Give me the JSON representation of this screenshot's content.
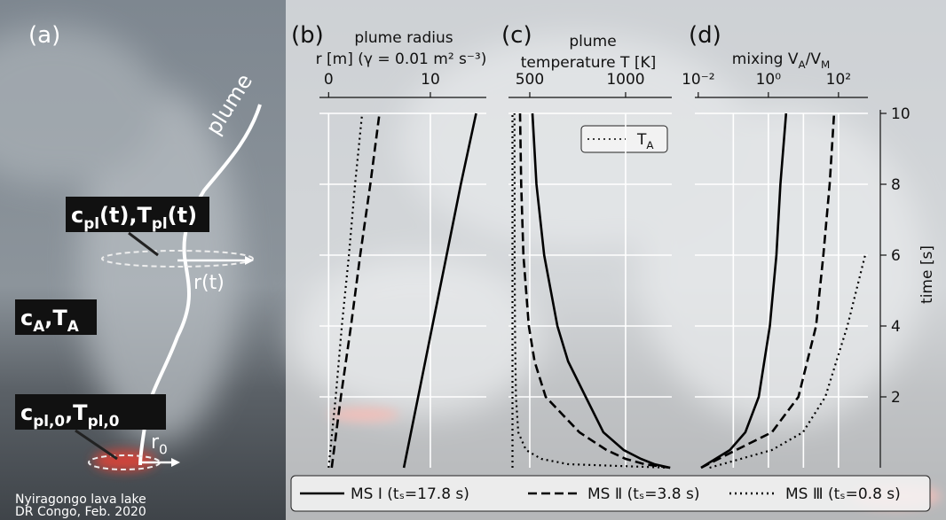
{
  "photo": {
    "panel_label": "(a)",
    "plume_label": "plume",
    "label_plume_state": [
      {
        "text": "c",
        "sub": "pl"
      },
      {
        "text": "(t),T",
        "sub": "pl"
      },
      {
        "text": "(t)"
      }
    ],
    "label_ambient": [
      {
        "text": "c",
        "sub": "A"
      },
      {
        "text": ",T",
        "sub": "A"
      }
    ],
    "label_initial": [
      {
        "text": "c",
        "sub": "pl,0"
      },
      {
        "text": ",T",
        "sub": "pl,0"
      }
    ],
    "label_radius": "r(t)",
    "label_radius0": [
      {
        "text": "r",
        "sub": "0"
      }
    ],
    "caption": [
      "Nyiragongo lava lake",
      "DR Congo, Feb. 2020"
    ]
  },
  "chart_data": [
    {
      "type": "line",
      "orientation": "horizontal",
      "panel_label": "(b)",
      "title": "plume radius",
      "xlabel": "r [m] (γ = 0.01 m² s⁻³)",
      "xlim": [
        -0.9,
        15.5
      ],
      "xticks": [
        0,
        10
      ],
      "ylim": [
        0,
        10.45
      ],
      "yticks": [
        2,
        4,
        6,
        8,
        10
      ],
      "grid": true,
      "y": [
        0,
        2,
        4,
        6,
        8,
        10
      ],
      "series": [
        {
          "name": "MS Ⅰ (tₛ=17.8 s)",
          "color": "#000000",
          "linestyle": "solid",
          "values": [
            7.4,
            8.8,
            10.2,
            11.6,
            13.0,
            14.5
          ]
        },
        {
          "name": "MS Ⅱ (tₛ=3.8 s)",
          "color": "#000000",
          "linestyle": "dashed",
          "values": [
            0.3,
            1.2,
            2.2,
            3.1,
            4.1,
            5.0
          ]
        },
        {
          "name": "MS Ⅲ (tₛ=0.8 s)",
          "color": "#000000",
          "linestyle": "dotted",
          "values": [
            0.0,
            0.7,
            1.3,
            2.0,
            2.6,
            3.3
          ]
        }
      ]
    },
    {
      "type": "line",
      "orientation": "horizontal",
      "panel_label": "(c)",
      "title": "plume",
      "xlabel": "temperature T [K]",
      "xlim": [
        389,
        1241
      ],
      "xticks": [
        500,
        1000
      ],
      "ylim": [
        0,
        10.45
      ],
      "yticks": [
        2,
        4,
        6,
        8,
        10
      ],
      "grid": true,
      "y": [
        0,
        0.1,
        0.25,
        0.5,
        1,
        2,
        3,
        4,
        6,
        8,
        10
      ],
      "series": [
        {
          "color": "#000000",
          "linestyle": "solid",
          "values": [
            1232,
            1150,
            1080,
            990,
            884,
            792,
            700,
            644,
            575,
            535,
            514
          ]
        },
        {
          "color": "#000000",
          "linestyle": "dashed",
          "values": [
            1232,
            1100,
            1000,
            900,
            759,
            583,
            525,
            495,
            467,
            455,
            449
          ]
        },
        {
          "color": "#000000",
          "linestyle": "dotted",
          "values": [
            1232,
            700,
            560,
            480,
            440,
            428,
            425,
            423,
            421,
            421,
            420
          ]
        }
      ],
      "reference": {
        "name": [
          {
            "text": "T",
            "sub": "A"
          }
        ],
        "color": "#000000",
        "linestyle": "dotted",
        "values": [
          410,
          410,
          410,
          410,
          410,
          410,
          410,
          410,
          410,
          410,
          410
        ]
      }
    },
    {
      "type": "line",
      "orientation": "horizontal",
      "panel_label": "(d)",
      "xlabel": [
        {
          "text": "mixing V",
          "sub": "A"
        },
        {
          "text": "/V",
          "sub": "M"
        }
      ],
      "xscale": "log",
      "xlim": [
        0.008,
        690
      ],
      "xticks": [
        {
          "value": 0.01,
          "label": "10⁻²"
        },
        {
          "value": 1,
          "label": "10⁰"
        },
        {
          "value": 100,
          "label": "10²"
        }
      ],
      "xgrid": [
        0.1,
        1,
        10,
        100
      ],
      "ylim": [
        0,
        10.45
      ],
      "yticks": [
        2,
        4,
        6,
        8,
        10
      ],
      "grid": true,
      "ytick_side": "right",
      "ylabel": "time [s]",
      "y": [
        0,
        0.5,
        1,
        2,
        4,
        6,
        8,
        10
      ],
      "series": [
        {
          "color": "#000000",
          "linestyle": "solid",
          "values": [
            0.012,
            0.08,
            0.22,
            0.53,
            1.1,
            1.7,
            2.2,
            3.2
          ]
        },
        {
          "color": "#000000",
          "linestyle": "dashed",
          "values": [
            0.012,
            0.12,
            1.26,
            7.2,
            23,
            37,
            56,
            75
          ]
        },
        {
          "color": "#000000",
          "linestyle": "dotted",
          "values": [
            0.021,
            1.26,
            9.7,
            42,
            180,
            575,
            null,
            null
          ]
        }
      ]
    }
  ]
}
